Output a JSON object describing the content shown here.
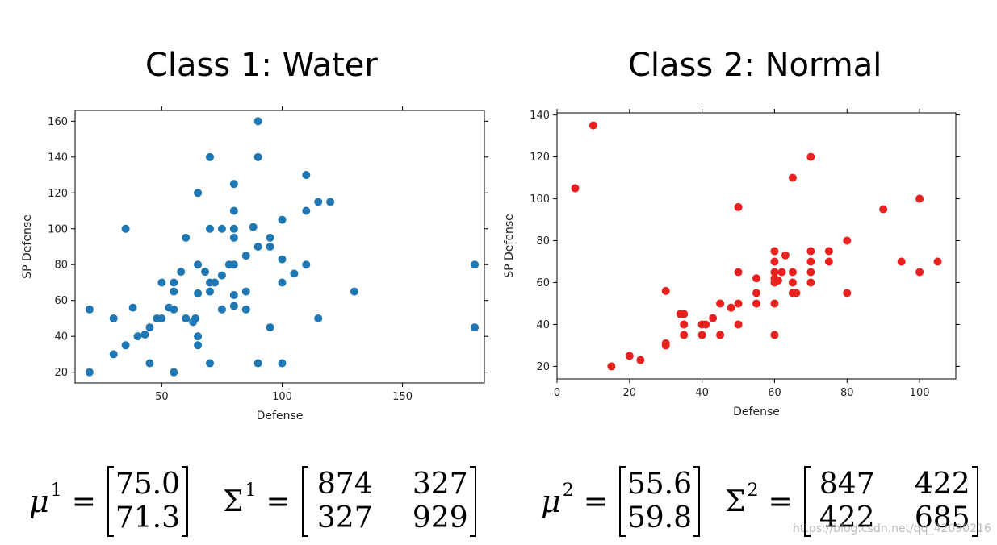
{
  "titles": {
    "left": "Class 1: Water",
    "right": "Class 2: Normal"
  },
  "chart_data": [
    {
      "type": "scatter",
      "xlabel": "Defense",
      "ylabel": "SP Defense",
      "xlim": [
        14,
        184
      ],
      "ylim": [
        14,
        166
      ],
      "xticks": [
        50,
        100,
        150
      ],
      "yticks": [
        20,
        40,
        60,
        80,
        100,
        120,
        140,
        160
      ],
      "color": "#1f77b4",
      "series": [
        {
          "points": [
            [
              20,
              55
            ],
            [
              20,
              20
            ],
            [
              30,
              50
            ],
            [
              30,
              30
            ],
            [
              35,
              35
            ],
            [
              35,
              100
            ],
            [
              38,
              56
            ],
            [
              40,
              40
            ],
            [
              43,
              41
            ],
            [
              45,
              45
            ],
            [
              45,
              25
            ],
            [
              48,
              50
            ],
            [
              50,
              70
            ],
            [
              50,
              50
            ],
            [
              53,
              56
            ],
            [
              55,
              70
            ],
            [
              55,
              65
            ],
            [
              55,
              55
            ],
            [
              55,
              20
            ],
            [
              58,
              76
            ],
            [
              60,
              95
            ],
            [
              60,
              50
            ],
            [
              63,
              48
            ],
            [
              64,
              50
            ],
            [
              65,
              120
            ],
            [
              65,
              80
            ],
            [
              65,
              64
            ],
            [
              65,
              40
            ],
            [
              65,
              35
            ],
            [
              68,
              76
            ],
            [
              70,
              140
            ],
            [
              70,
              100
            ],
            [
              70,
              70
            ],
            [
              70,
              65
            ],
            [
              70,
              25
            ],
            [
              72,
              70
            ],
            [
              75,
              100
            ],
            [
              75,
              74
            ],
            [
              75,
              55
            ],
            [
              78,
              80
            ],
            [
              80,
              125
            ],
            [
              80,
              110
            ],
            [
              80,
              100
            ],
            [
              80,
              95
            ],
            [
              80,
              80
            ],
            [
              80,
              63
            ],
            [
              80,
              57
            ],
            [
              85,
              85
            ],
            [
              85,
              65
            ],
            [
              85,
              55
            ],
            [
              88,
              101
            ],
            [
              90,
              160
            ],
            [
              90,
              140
            ],
            [
              90,
              90
            ],
            [
              90,
              25
            ],
            [
              95,
              95
            ],
            [
              95,
              90
            ],
            [
              95,
              45
            ],
            [
              100,
              105
            ],
            [
              100,
              83
            ],
            [
              100,
              70
            ],
            [
              100,
              25
            ],
            [
              105,
              75
            ],
            [
              110,
              130
            ],
            [
              110,
              110
            ],
            [
              110,
              80
            ],
            [
              115,
              115
            ],
            [
              115,
              50
            ],
            [
              120,
              115
            ],
            [
              130,
              65
            ],
            [
              180,
              80
            ],
            [
              180,
              45
            ]
          ]
        }
      ]
    },
    {
      "type": "scatter",
      "xlabel": "Defense",
      "ylabel": "SP Defense",
      "xlim": [
        0,
        110
      ],
      "ylim": [
        14,
        141
      ],
      "xticks": [
        0,
        20,
        40,
        60,
        80,
        100
      ],
      "yticks": [
        20,
        40,
        60,
        80,
        100,
        120,
        140
      ],
      "color": "#e8201e",
      "series": [
        {
          "points": [
            [
              5,
              105
            ],
            [
              10,
              135
            ],
            [
              15,
              20
            ],
            [
              20,
              25
            ],
            [
              23,
              23
            ],
            [
              30,
              56
            ],
            [
              30,
              31
            ],
            [
              30,
              30
            ],
            [
              34,
              45
            ],
            [
              35,
              45
            ],
            [
              35,
              40
            ],
            [
              35,
              35
            ],
            [
              40,
              40
            ],
            [
              40,
              35
            ],
            [
              41,
              40
            ],
            [
              43,
              43
            ],
            [
              45,
              50
            ],
            [
              45,
              35
            ],
            [
              48,
              48
            ],
            [
              50,
              96
            ],
            [
              50,
              65
            ],
            [
              50,
              50
            ],
            [
              50,
              40
            ],
            [
              55,
              62
            ],
            [
              55,
              55
            ],
            [
              55,
              50
            ],
            [
              60,
              75
            ],
            [
              60,
              70
            ],
            [
              60,
              65
            ],
            [
              60,
              62
            ],
            [
              60,
              60
            ],
            [
              60,
              50
            ],
            [
              60,
              35
            ],
            [
              61,
              61
            ],
            [
              62,
              65
            ],
            [
              63,
              73
            ],
            [
              65,
              110
            ],
            [
              65,
              65
            ],
            [
              65,
              60
            ],
            [
              65,
              55
            ],
            [
              66,
              55
            ],
            [
              70,
              120
            ],
            [
              70,
              75
            ],
            [
              70,
              70
            ],
            [
              70,
              65
            ],
            [
              70,
              60
            ],
            [
              75,
              75
            ],
            [
              75,
              70
            ],
            [
              80,
              80
            ],
            [
              80,
              55
            ],
            [
              90,
              95
            ],
            [
              95,
              70
            ],
            [
              100,
              100
            ],
            [
              100,
              65
            ],
            [
              105,
              70
            ]
          ]
        }
      ]
    }
  ],
  "formulas": {
    "mu1": {
      "symbol": "μ",
      "sup": "1",
      "values": [
        "75.0",
        "71.3"
      ]
    },
    "sigma1": {
      "symbol": "Σ",
      "sup": "1",
      "rows": [
        [
          "874",
          "327"
        ],
        [
          "327",
          "929"
        ]
      ]
    },
    "mu2": {
      "symbol": "μ",
      "sup": "2",
      "values": [
        "55.6",
        "59.8"
      ]
    },
    "sigma2": {
      "symbol": "Σ",
      "sup": "2",
      "rows": [
        [
          "847",
          "422"
        ],
        [
          "422",
          "685"
        ]
      ]
    },
    "equals": "="
  },
  "watermark": "https://blog.csdn.net/qq_42090216"
}
